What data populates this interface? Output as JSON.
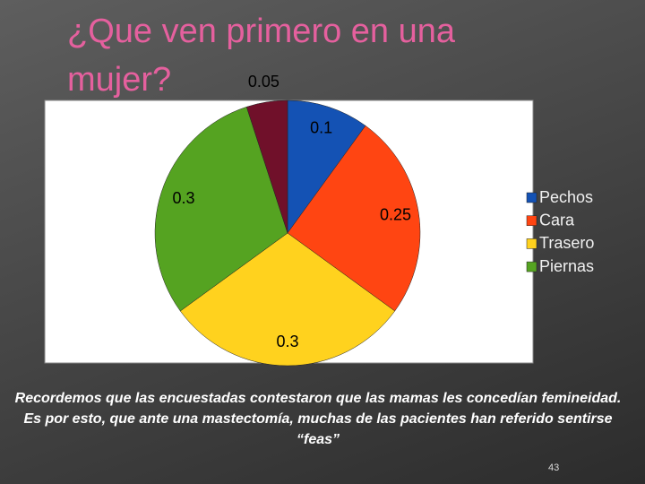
{
  "chart_data": {
    "type": "pie",
    "title": "¿Que ven primero en una mujer?",
    "categories": [
      "Pechos",
      "Cara",
      "Trasero",
      "Piernas",
      null
    ],
    "values": [
      0.1,
      0.25,
      0.3,
      0.3,
      0.05
    ],
    "colors": [
      "#1452b4",
      "#ff4512",
      "#ffd21e",
      "#55a321",
      "#70102a"
    ],
    "legend": "right"
  },
  "note": "Recordemos que las encuestadas contestaron que las mamas les concedían femineidad. Es por esto, que ante una mastectomía, muchas de las pacientes han referido sentirse “feas”",
  "page_number": "43"
}
